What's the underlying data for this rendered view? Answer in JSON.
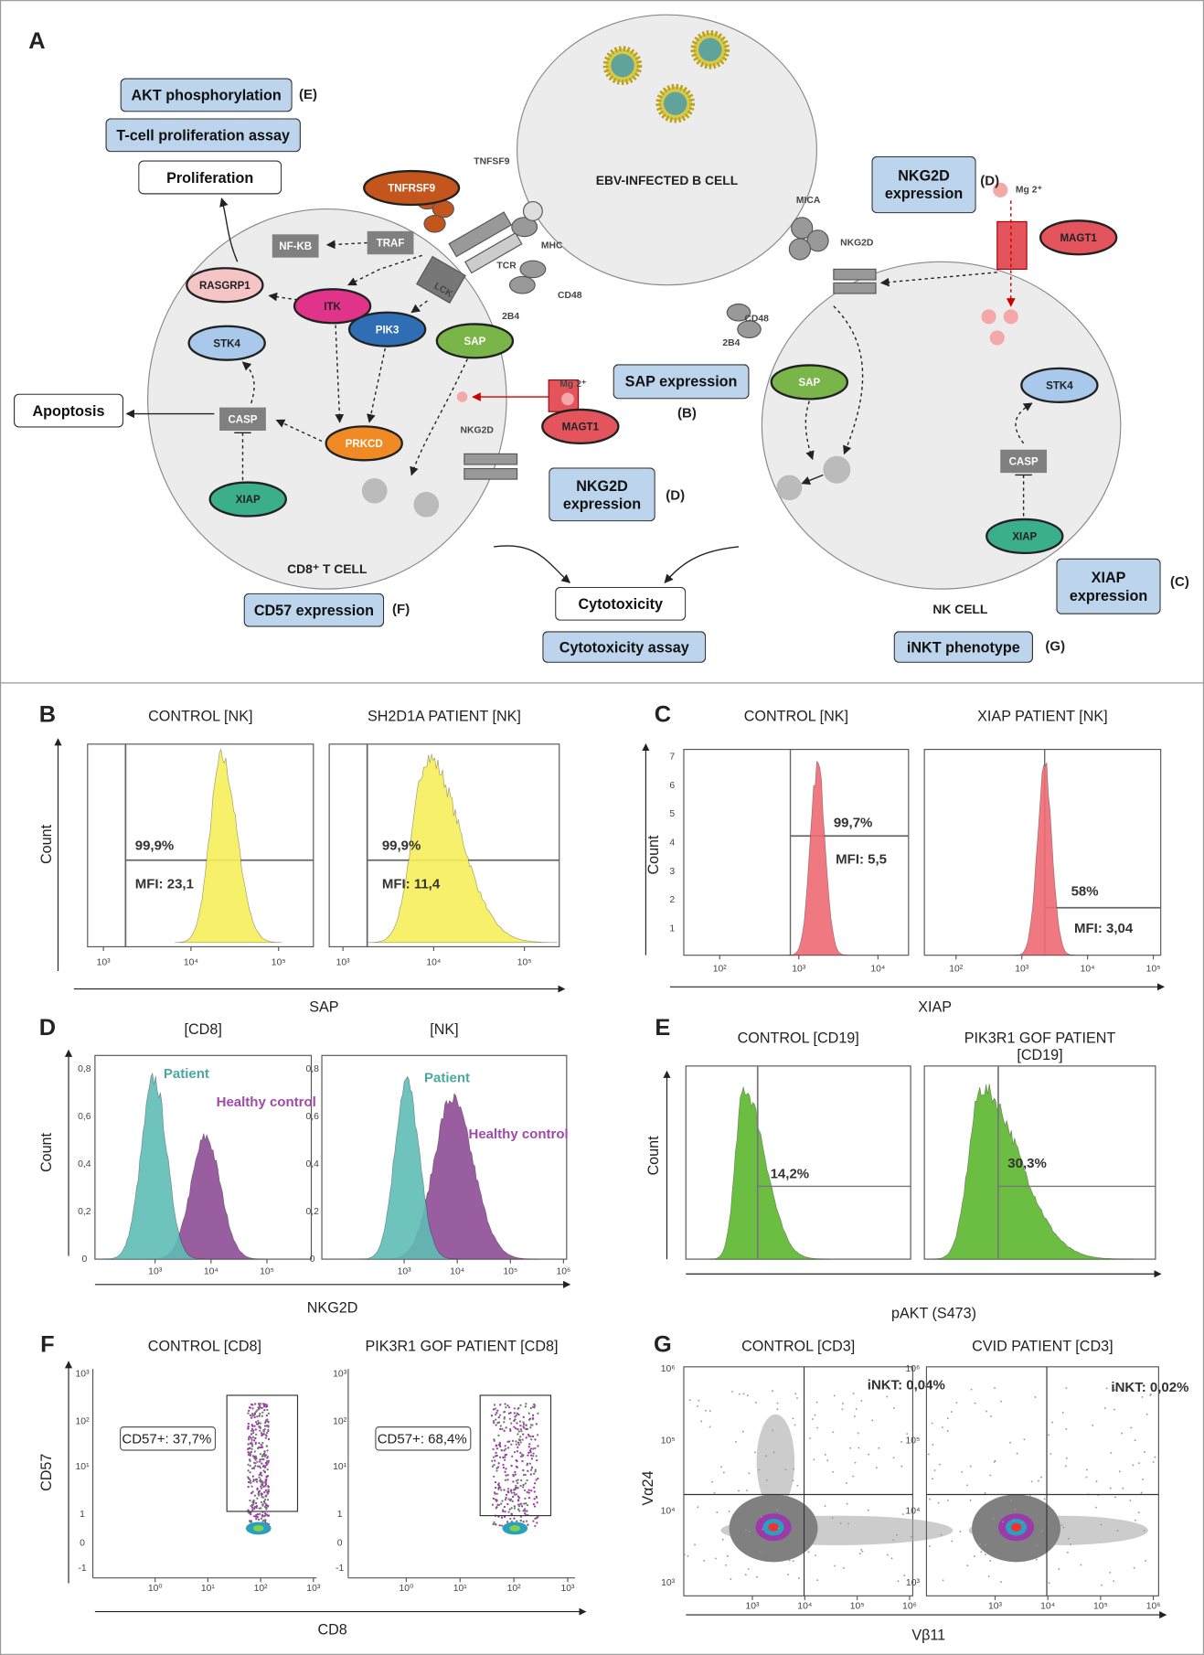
{
  "panel_a": {
    "label": "A",
    "cells": [
      "EBV-INFECTED B CELL",
      "CD8⁺ T CELL",
      "NK CELL"
    ],
    "readouts": [
      {
        "text": "AKT phosphorylation",
        "ref": "(E)"
      },
      {
        "text": "T-cell proliferation assay"
      },
      {
        "text": "NKG2D expression",
        "ref": "(D)"
      },
      {
        "text": "SAP expression",
        "ref": "(B)"
      },
      {
        "text": "NKG2D expression",
        "ref": "(D)"
      },
      {
        "text": "XIAP expression",
        "ref": "(C)"
      },
      {
        "text": "CD57 expression",
        "ref": "(F)"
      },
      {
        "text": "Cytotoxicity assay"
      },
      {
        "text": "iNKT phenotype",
        "ref": "(G)"
      }
    ],
    "outcomes": [
      "Proliferation",
      "Apoptosis",
      "Cytotoxicity"
    ],
    "molecules": [
      "TNFRSF9",
      "NF-KB",
      "TRAF",
      "RASGRP1",
      "ITK",
      "PIK3",
      "SAP",
      "STK4",
      "CASP",
      "PRKCD",
      "XIAP",
      "MAGT1",
      "SAP",
      "MAGT1",
      "STK4",
      "CASP",
      "XIAP"
    ],
    "markers": [
      "TNFSF9",
      "MHC",
      "TCR",
      "CD48",
      "2B4",
      "LCK",
      "MICA",
      "NKG2D",
      "CD48",
      "2B4",
      "NKG2D",
      "Mg 2⁺",
      "Mg 2⁺"
    ]
  },
  "panels": [
    {
      "label": "B",
      "xlabel": "SAP",
      "ylabel": "Count",
      "plots": [
        {
          "title": "CONTROL [NK]",
          "xticks": [
            "10³",
            "10⁴",
            "10⁵"
          ],
          "annotations": [
            "99,9%",
            "MFI: 23,1"
          ]
        },
        {
          "title": "SH2D1A PATIENT [NK]",
          "xticks": [
            "10³",
            "10⁴",
            "10⁵"
          ],
          "annotations": [
            "99,9%",
            "MFI: 11,4"
          ]
        }
      ]
    },
    {
      "label": "C",
      "xlabel": "XIAP",
      "ylabel": "Count",
      "plots": [
        {
          "title": "CONTROL [NK]",
          "yticks": [
            "7",
            "6",
            "5",
            "4",
            "3",
            "2",
            "1"
          ],
          "xticks": [
            "10²",
            "10³",
            "10⁴"
          ],
          "annotations": [
            "99,7%",
            "MFI: 5,5"
          ]
        },
        {
          "title": "XIAP PATIENT [NK]",
          "xticks": [
            "10²",
            "10³",
            "10⁴",
            "10⁵"
          ],
          "annotations": [
            "58%",
            "MFI: 3,04"
          ]
        }
      ]
    },
    {
      "label": "D",
      "xlabel": "NKG2D",
      "ylabel": "Count",
      "plots": [
        {
          "title": "[CD8]",
          "yticks": [
            "0,8",
            "0,6",
            "0,4",
            "0,2",
            "0"
          ],
          "xticks": [
            "10³",
            "10⁴",
            "10⁵"
          ],
          "legend": [
            "Patient",
            "Healthy control"
          ]
        },
        {
          "title": "[NK]",
          "yticks": [
            "0,8",
            "0,6",
            "0,4",
            "0,2",
            "0"
          ],
          "xticks": [
            "10³",
            "10⁴",
            "10⁵",
            "10⁶"
          ],
          "legend": [
            "Patient",
            "Healthy control"
          ]
        }
      ]
    },
    {
      "label": "E",
      "xlabel": "pAKT (S473)",
      "ylabel": "Count",
      "plots": [
        {
          "title": "CONTROL [CD19]",
          "annotations": [
            "14,2%"
          ]
        },
        {
          "title": "PIK3R1 GOF PATIENT [CD19]",
          "annotations": [
            "30,3%"
          ]
        }
      ]
    },
    {
      "label": "F",
      "xlabel": "CD8",
      "ylabel": "CD57",
      "plots": [
        {
          "title": "CONTROL [CD8]",
          "yticks": [
            "10³",
            "10²",
            "10¹",
            "1",
            "0",
            "-1"
          ],
          "xticks": [
            "10⁰",
            "10¹",
            "10²",
            "10³"
          ],
          "annotations": [
            "CD57+: 37,7%"
          ]
        },
        {
          "title": "PIK3R1 GOF PATIENT [CD8]",
          "yticks": [
            "10³",
            "10²",
            "10¹",
            "1",
            "0",
            "-1"
          ],
          "xticks": [
            "10⁰",
            "10¹",
            "10²",
            "10³"
          ],
          "annotations": [
            "CD57+: 68,4%"
          ]
        }
      ]
    },
    {
      "label": "G",
      "xlabel": "Vβ11",
      "ylabel": "Vα24",
      "plots": [
        {
          "title": "CONTROL [CD3]",
          "yticks": [
            "10⁶",
            "10⁵",
            "10⁴",
            "10³"
          ],
          "xticks": [
            "10³",
            "10⁴",
            "10⁵",
            "10⁶"
          ],
          "annotations": [
            "iNKT: 0,04%"
          ]
        },
        {
          "title": "CVID PATIENT [CD3]",
          "yticks": [
            "10⁶",
            "10⁵",
            "10⁴",
            "10³"
          ],
          "xticks": [
            "10³",
            "10⁴",
            "10⁵",
            "10⁶"
          ],
          "annotations": [
            "iNKT: 0,02%"
          ]
        }
      ]
    }
  ]
}
